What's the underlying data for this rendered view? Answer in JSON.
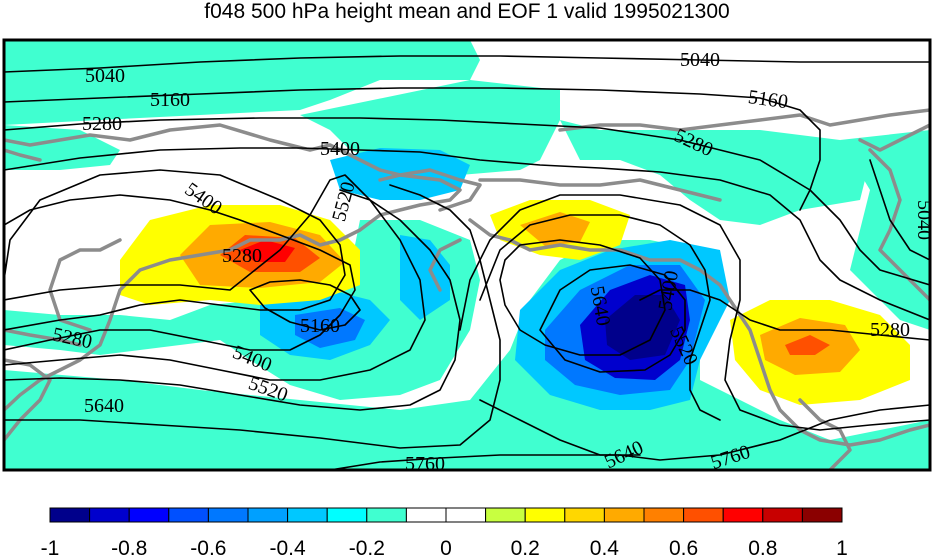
{
  "title": "f048 500 hPa height mean and EOF 1 valid 1995021300",
  "contour_labels": [
    "5040",
    "5040",
    "5160",
    "5160",
    "5280",
    "5280",
    "5400",
    "5400",
    "5520",
    "5280",
    "5160",
    "5280",
    "5400",
    "5520",
    "5640",
    "5640",
    "5400",
    "5520",
    "5640",
    "5760",
    "5760",
    "5280",
    "5040"
  ],
  "colorbar": {
    "colors": [
      "#00008b",
      "#0000cd",
      "#0000ff",
      "#0050ff",
      "#0078ff",
      "#00a0ff",
      "#00c8ff",
      "#00ffff",
      "#40ffd0",
      "#ffffff",
      "#ffffff",
      "#c8ff40",
      "#ffff00",
      "#ffd700",
      "#ffaa00",
      "#ff8000",
      "#ff5000",
      "#ff0000",
      "#c80000",
      "#8b0000"
    ],
    "ticks": [
      "-1",
      "-0.8",
      "-0.6",
      "-0.4",
      "-0.2",
      "0",
      "0.2",
      "0.4",
      "0.6",
      "0.8",
      "1"
    ]
  },
  "colors": {
    "coast": "#8c8c8c",
    "contour": "#000000"
  }
}
